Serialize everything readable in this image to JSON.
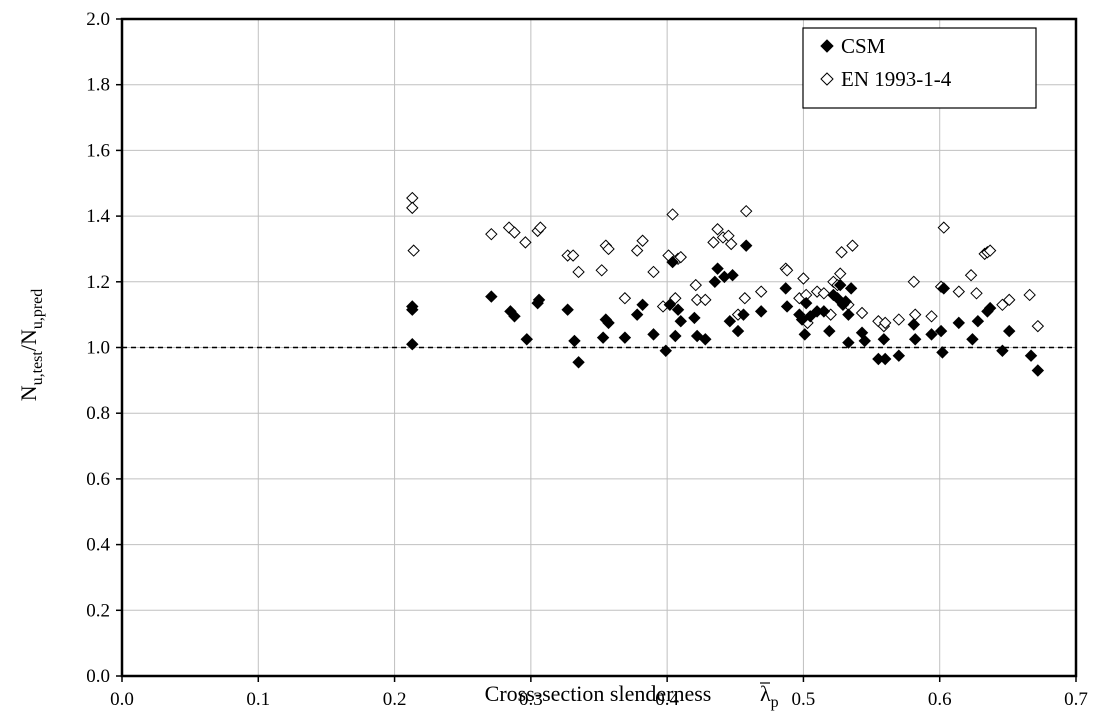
{
  "chart_data": {
    "type": "scatter",
    "xlabel": "Cross-section slenderness",
    "xlabel_symbol": "λ",
    "xlabel_symbol_sub": "p",
    "ylabel_main": "N",
    "ylabel_sub1": "u,test",
    "ylabel_sep": "/N",
    "ylabel_sub2": "u,pred",
    "xlim": [
      0.0,
      0.7
    ],
    "ylim": [
      0.0,
      2.0
    ],
    "xticks": [
      "0.0",
      "0.1",
      "0.2",
      "0.3",
      "0.4",
      "0.5",
      "0.6",
      "0.7"
    ],
    "yticks": [
      "0.0",
      "0.2",
      "0.4",
      "0.6",
      "0.8",
      "1.0",
      "1.2",
      "1.4",
      "1.6",
      "1.8",
      "2.0"
    ],
    "grid": true,
    "reference_line_y": 1.0,
    "legend_position": "top-right",
    "series": [
      {
        "name": "CSM",
        "marker": "filled-diamond",
        "color": "#000000",
        "points": [
          [
            0.213,
            1.125
          ],
          [
            0.213,
            1.115
          ],
          [
            0.213,
            1.01
          ],
          [
            0.271,
            1.155
          ],
          [
            0.285,
            1.11
          ],
          [
            0.288,
            1.095
          ],
          [
            0.297,
            1.025
          ],
          [
            0.305,
            1.135
          ],
          [
            0.306,
            1.145
          ],
          [
            0.327,
            1.115
          ],
          [
            0.332,
            1.02
          ],
          [
            0.335,
            0.955
          ],
          [
            0.353,
            1.03
          ],
          [
            0.355,
            1.085
          ],
          [
            0.357,
            1.075
          ],
          [
            0.369,
            1.03
          ],
          [
            0.378,
            1.1
          ],
          [
            0.382,
            1.13
          ],
          [
            0.39,
            1.04
          ],
          [
            0.399,
            0.99
          ],
          [
            0.402,
            1.13
          ],
          [
            0.404,
            1.26
          ],
          [
            0.406,
            1.035
          ],
          [
            0.408,
            1.115
          ],
          [
            0.41,
            1.08
          ],
          [
            0.42,
            1.09
          ],
          [
            0.422,
            1.035
          ],
          [
            0.428,
            1.025
          ],
          [
            0.435,
            1.2
          ],
          [
            0.437,
            1.24
          ],
          [
            0.442,
            1.215
          ],
          [
            0.446,
            1.08
          ],
          [
            0.448,
            1.22
          ],
          [
            0.452,
            1.05
          ],
          [
            0.456,
            1.1
          ],
          [
            0.458,
            1.31
          ],
          [
            0.469,
            1.11
          ],
          [
            0.487,
            1.18
          ],
          [
            0.488,
            1.125
          ],
          [
            0.497,
            1.1
          ],
          [
            0.499,
            1.085
          ],
          [
            0.501,
            1.04
          ],
          [
            0.502,
            1.135
          ],
          [
            0.505,
            1.095
          ],
          [
            0.51,
            1.11
          ],
          [
            0.515,
            1.11
          ],
          [
            0.519,
            1.05
          ],
          [
            0.522,
            1.16
          ],
          [
            0.525,
            1.15
          ],
          [
            0.527,
            1.19
          ],
          [
            0.529,
            1.13
          ],
          [
            0.531,
            1.14
          ],
          [
            0.533,
            1.1
          ],
          [
            0.533,
            1.015
          ],
          [
            0.535,
            1.18
          ],
          [
            0.543,
            1.045
          ],
          [
            0.545,
            1.02
          ],
          [
            0.555,
            0.965
          ],
          [
            0.559,
            1.025
          ],
          [
            0.56,
            0.965
          ],
          [
            0.57,
            0.975
          ],
          [
            0.581,
            1.07
          ],
          [
            0.582,
            1.025
          ],
          [
            0.594,
            1.04
          ],
          [
            0.601,
            1.05
          ],
          [
            0.602,
            0.985
          ],
          [
            0.603,
            1.18
          ],
          [
            0.614,
            1.075
          ],
          [
            0.624,
            1.025
          ],
          [
            0.628,
            1.08
          ],
          [
            0.635,
            1.11
          ],
          [
            0.637,
            1.12
          ],
          [
            0.646,
            0.99
          ],
          [
            0.651,
            1.05
          ],
          [
            0.667,
            0.975
          ],
          [
            0.672,
            0.93
          ]
        ]
      },
      {
        "name": "EN 1993-1-4",
        "marker": "open-diamond",
        "color": "#000000",
        "points": [
          [
            0.213,
            1.455
          ],
          [
            0.213,
            1.425
          ],
          [
            0.214,
            1.295
          ],
          [
            0.271,
            1.345
          ],
          [
            0.284,
            1.365
          ],
          [
            0.288,
            1.35
          ],
          [
            0.296,
            1.32
          ],
          [
            0.305,
            1.355
          ],
          [
            0.307,
            1.365
          ],
          [
            0.327,
            1.28
          ],
          [
            0.331,
            1.28
          ],
          [
            0.335,
            1.23
          ],
          [
            0.352,
            1.235
          ],
          [
            0.355,
            1.31
          ],
          [
            0.357,
            1.3
          ],
          [
            0.369,
            1.15
          ],
          [
            0.378,
            1.295
          ],
          [
            0.382,
            1.325
          ],
          [
            0.39,
            1.23
          ],
          [
            0.397,
            1.125
          ],
          [
            0.401,
            1.28
          ],
          [
            0.404,
            1.405
          ],
          [
            0.406,
            1.15
          ],
          [
            0.408,
            1.27
          ],
          [
            0.41,
            1.275
          ],
          [
            0.421,
            1.19
          ],
          [
            0.422,
            1.145
          ],
          [
            0.428,
            1.145
          ],
          [
            0.434,
            1.32
          ],
          [
            0.437,
            1.36
          ],
          [
            0.441,
            1.335
          ],
          [
            0.445,
            1.34
          ],
          [
            0.447,
            1.315
          ],
          [
            0.452,
            1.1
          ],
          [
            0.457,
            1.15
          ],
          [
            0.458,
            1.415
          ],
          [
            0.469,
            1.17
          ],
          [
            0.487,
            1.24
          ],
          [
            0.488,
            1.235
          ],
          [
            0.497,
            1.15
          ],
          [
            0.5,
            1.21
          ],
          [
            0.502,
            1.16
          ],
          [
            0.503,
            1.075
          ],
          [
            0.51,
            1.17
          ],
          [
            0.515,
            1.165
          ],
          [
            0.52,
            1.1
          ],
          [
            0.522,
            1.2
          ],
          [
            0.525,
            1.19
          ],
          [
            0.527,
            1.225
          ],
          [
            0.528,
            1.29
          ],
          [
            0.533,
            1.13
          ],
          [
            0.536,
            1.31
          ],
          [
            0.543,
            1.105
          ],
          [
            0.555,
            1.08
          ],
          [
            0.559,
            1.065
          ],
          [
            0.56,
            1.075
          ],
          [
            0.57,
            1.085
          ],
          [
            0.581,
            1.2
          ],
          [
            0.582,
            1.1
          ],
          [
            0.594,
            1.095
          ],
          [
            0.601,
            1.185
          ],
          [
            0.603,
            1.365
          ],
          [
            0.614,
            1.17
          ],
          [
            0.623,
            1.22
          ],
          [
            0.627,
            1.165
          ],
          [
            0.633,
            1.285
          ],
          [
            0.635,
            1.29
          ],
          [
            0.637,
            1.295
          ],
          [
            0.646,
            1.13
          ],
          [
            0.651,
            1.145
          ],
          [
            0.666,
            1.16
          ],
          [
            0.672,
            1.065
          ]
        ]
      }
    ]
  }
}
